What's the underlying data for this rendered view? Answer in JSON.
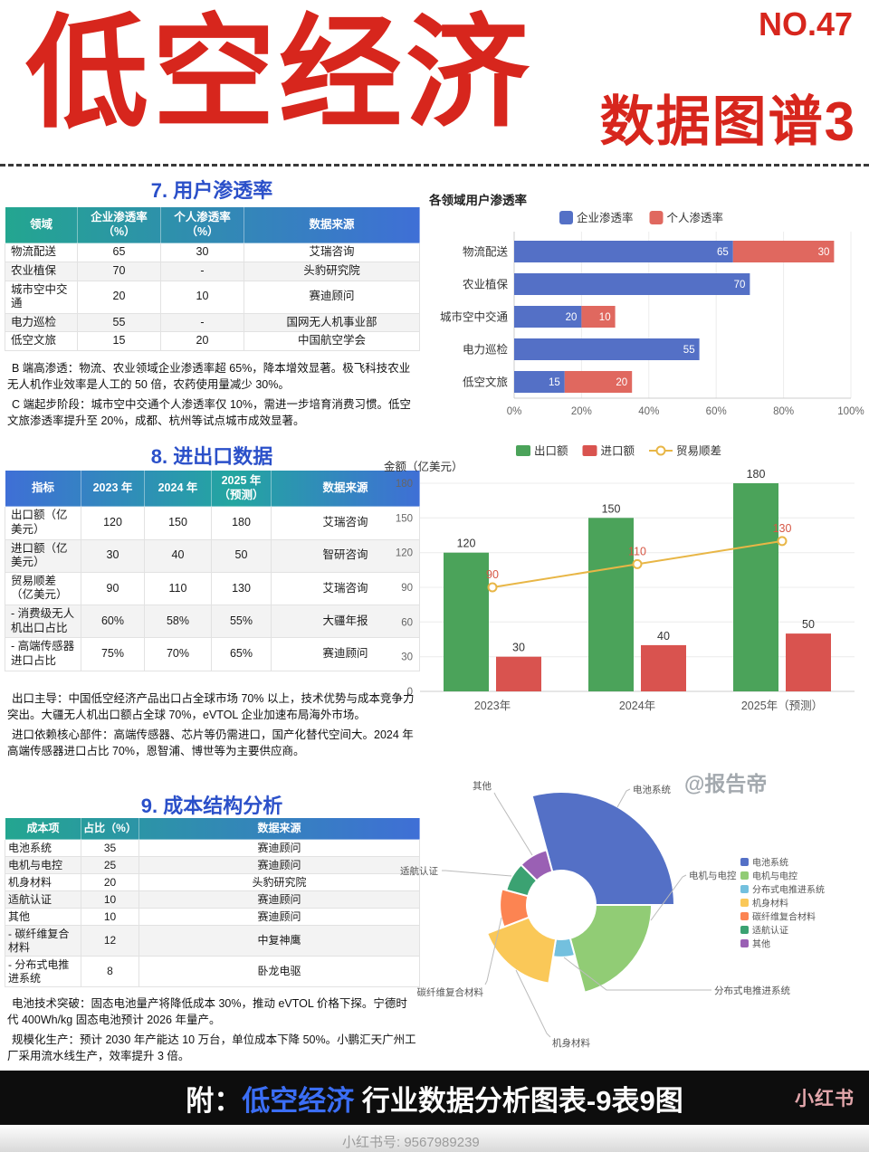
{
  "header": {
    "issue_no": "NO.47",
    "title": "低空经济",
    "subtitle": "数据图谱3",
    "accent_color": "#d7261d"
  },
  "sections": {
    "s7": {
      "title": "7. 用户渗透率",
      "table": {
        "headers": [
          "领域",
          "企业渗透率（%）",
          "个人渗透率（%）",
          "数据来源"
        ],
        "rows": [
          [
            "物流配送",
            "65",
            "30",
            "艾瑞咨询"
          ],
          [
            "农业植保",
            "70",
            "-",
            "头豹研究院"
          ],
          [
            "城市空中交通",
            "20",
            "10",
            "赛迪顾问"
          ],
          [
            "电力巡检",
            "55",
            "-",
            "国网无人机事业部"
          ],
          [
            "低空文旅",
            "15",
            "20",
            "中国航空学会"
          ]
        ]
      },
      "notes": [
        "B 端高渗透：物流、农业领域企业渗透率超 65%，降本增效显著。极飞科技农业无人机作业效率是人工的 50 倍，农药使用量减少 30%。",
        "C 端起步阶段：城市空中交通个人渗透率仅 10%，需进一步培育消费习惯。低空文旅渗透率提升至 20%，成都、杭州等试点城市成效显著。"
      ]
    },
    "s8": {
      "title": "8. 进出口数据",
      "table": {
        "headers": [
          "指标",
          "2023 年",
          "2024 年",
          "2025 年（预测）",
          "数据来源"
        ],
        "rows": [
          [
            "出口额（亿美元）",
            "120",
            "150",
            "180",
            "艾瑞咨询"
          ],
          [
            "进口额（亿美元）",
            "30",
            "40",
            "50",
            "智研咨询"
          ],
          [
            "贸易顺差（亿美元）",
            "90",
            "110",
            "130",
            "艾瑞咨询"
          ],
          [
            "- 消费级无人机出口占比",
            "60%",
            "58%",
            "55%",
            "大疆年报"
          ],
          [
            "- 高端传感器进口占比",
            "75%",
            "70%",
            "65%",
            "赛迪顾问"
          ]
        ]
      },
      "notes": [
        "出口主导：中国低空经济产品出口占全球市场 70% 以上，技术优势与成本竞争力突出。大疆无人机出口额占全球 70%，eVTOL 企业加速布局海外市场。",
        "进口依赖核心部件：高端传感器、芯片等仍需进口，国产化替代空间大。2024 年高端传感器进口占比 70%，恩智浦、博世等为主要供应商。"
      ]
    },
    "s9": {
      "title": "9. 成本结构分析",
      "table": {
        "headers": [
          "成本项",
          "占比（%）",
          "数据来源"
        ],
        "rows": [
          [
            "电池系统",
            "35",
            "赛迪顾问"
          ],
          [
            "电机与电控",
            "25",
            "赛迪顾问"
          ],
          [
            "机身材料",
            "20",
            "头豹研究院"
          ],
          [
            "适航认证",
            "10",
            "赛迪顾问"
          ],
          [
            "其他",
            "10",
            "赛迪顾问"
          ],
          [
            "- 碳纤维复合材料",
            "12",
            "中复神鹰"
          ],
          [
            "- 分布式电推进系统",
            "8",
            "卧龙电驱"
          ]
        ]
      },
      "notes": [
        "电池技术突破：固态电池量产将降低成本 30%，推动 eVTOL 价格下探。宁德时代 400Wh/kg 固态电池预计 2026 年量产。",
        "规模化生产：预计 2030 年产能达 10 万台，单位成本下降 50%。小鹏汇天广州工厂采用流水线生产，效率提升 3 倍。"
      ]
    }
  },
  "chart_data": [
    {
      "id": "penetration",
      "type": "bar",
      "orientation": "horizontal-stacked",
      "title": "各领域用户渗透率",
      "categories": [
        "物流配送",
        "农业植保",
        "城市空中交通",
        "电力巡检",
        "低空文旅"
      ],
      "series": [
        {
          "name": "企业渗透率",
          "color": "#5470c6",
          "values": [
            65,
            70,
            20,
            55,
            15
          ]
        },
        {
          "name": "个人渗透率",
          "color": "#e0685f",
          "values": [
            30,
            0,
            10,
            0,
            20
          ]
        }
      ],
      "xticks": [
        "0%",
        "20%",
        "40%",
        "60%",
        "80%",
        "100%"
      ],
      "xlim": [
        0,
        100
      ],
      "legend_position": "top",
      "grid": true
    },
    {
      "id": "trade",
      "type": "bar+line",
      "ylabel": "金额（亿美元）",
      "categories": [
        "2023年",
        "2024年",
        "2025年（预测）"
      ],
      "series": [
        {
          "name": "出口额",
          "type": "bar",
          "color": "#4ba35a",
          "values": [
            120,
            150,
            180
          ]
        },
        {
          "name": "进口额",
          "type": "bar",
          "color": "#d9534f",
          "values": [
            30,
            40,
            50
          ]
        },
        {
          "name": "贸易顺差",
          "type": "line",
          "color": "#e8b646",
          "label_color": "#d65745",
          "values": [
            90,
            110,
            130
          ]
        }
      ],
      "yticks": [
        0,
        30,
        60,
        90,
        120,
        150,
        180
      ],
      "ylim": [
        0,
        180
      ],
      "legend_position": "top",
      "grid": true
    },
    {
      "id": "cost",
      "type": "pie",
      "variant": "rose",
      "labels": [
        "电池系统",
        "电机与电控",
        "分布式电推进系统",
        "机身材料",
        "碳纤维复合材料",
        "适航认证",
        "其他"
      ],
      "values": [
        35,
        25,
        8,
        20,
        12,
        10,
        10
      ],
      "colors": [
        "#5470c6",
        "#91cc75",
        "#73c0de",
        "#fac858",
        "#fc8452",
        "#3ba272",
        "#9a60b4"
      ],
      "legend_position": "right"
    }
  ],
  "watermarks": {
    "baogaodi": "@报告帝",
    "platform": "小红书",
    "account": "小红书号: 9567989239"
  },
  "footer": {
    "prefix": "附：",
    "highlight": "低空经济",
    "suffix": " 行业数据分析图表-9表9图",
    "highlight_color": "#3b6ef5"
  }
}
